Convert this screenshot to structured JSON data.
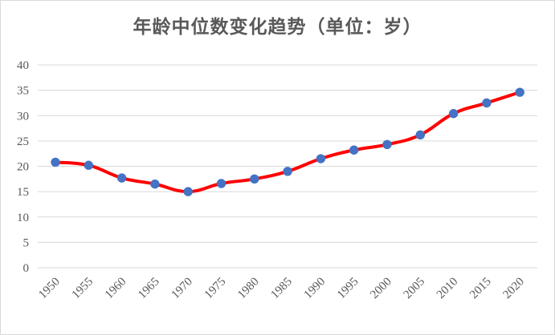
{
  "chart_data": {
    "type": "line",
    "title": "年龄中位数变化趋势（单位：岁）",
    "xlabel": "",
    "ylabel": "",
    "categories": [
      "1950",
      "1955",
      "1960",
      "1965",
      "1970",
      "1975",
      "1980",
      "1985",
      "1990",
      "1995",
      "2000",
      "2005",
      "2010",
      "2015",
      "2020"
    ],
    "series": [
      {
        "values": [
          20.8,
          20.2,
          17.7,
          16.5,
          15.0,
          16.6,
          17.5,
          19.0,
          21.5,
          23.2,
          24.3,
          26.2,
          30.4,
          32.5,
          34.6
        ]
      }
    ],
    "ylim": [
      0,
      40
    ],
    "yticks": [
      0,
      5,
      10,
      15,
      20,
      25,
      30,
      35,
      40
    ],
    "grid": "horizontal",
    "smooth": true,
    "line_color": "#ff0000",
    "marker_color": "#4472c4",
    "grid_color": "#d9d9d9"
  }
}
